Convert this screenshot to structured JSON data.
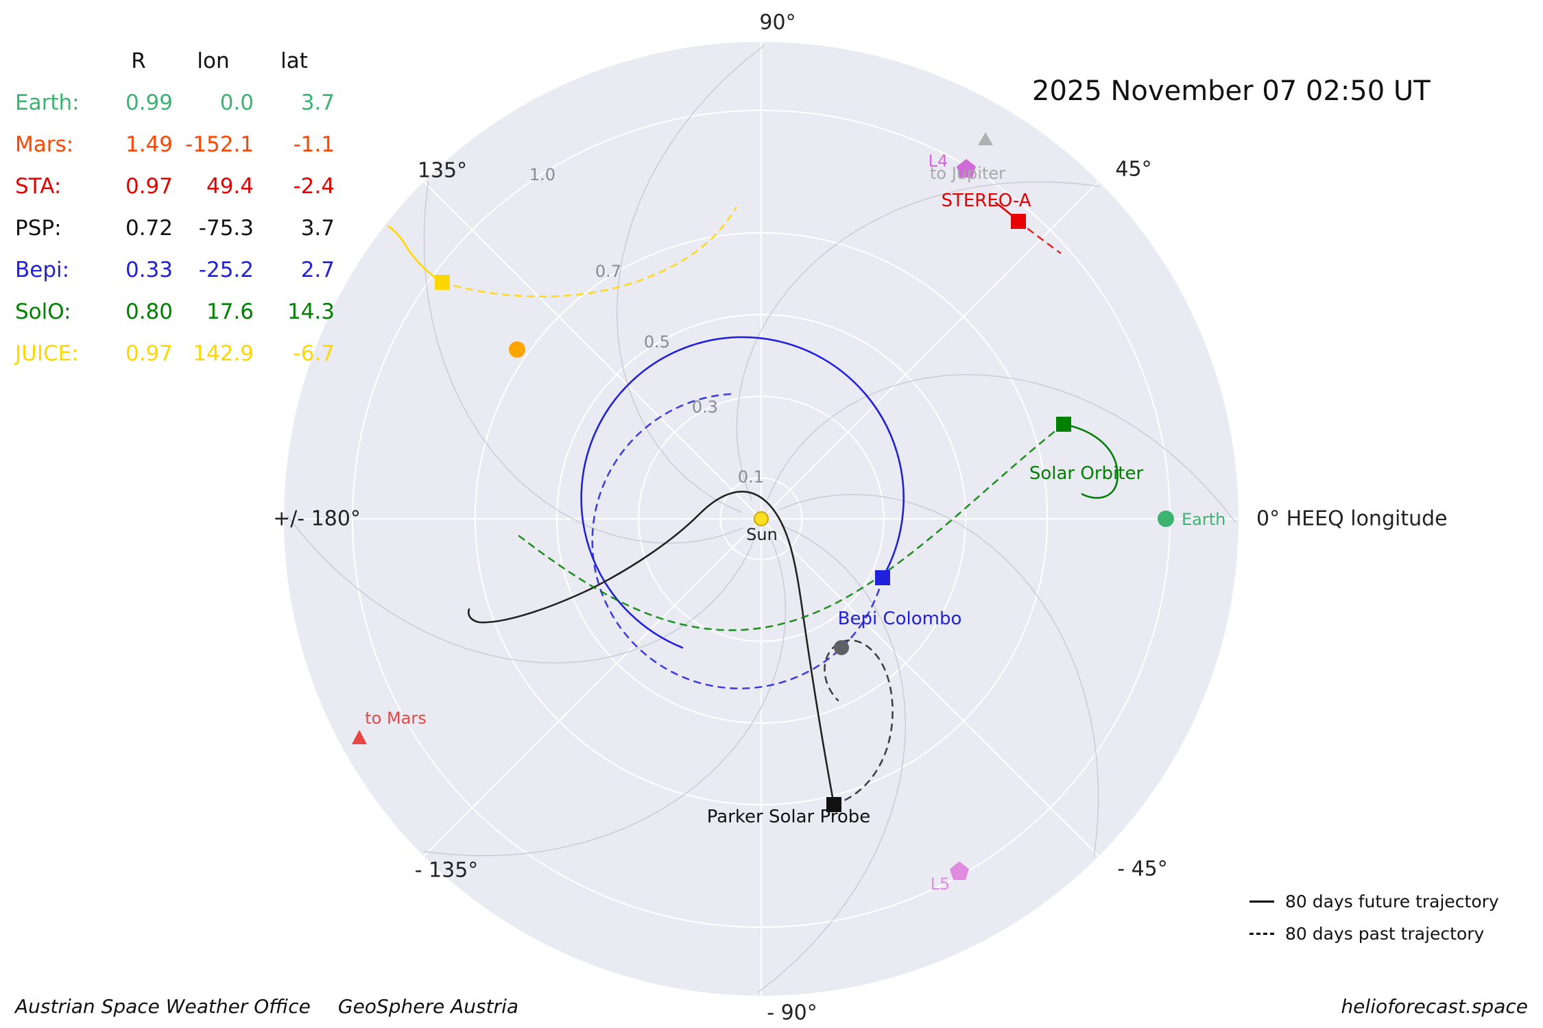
{
  "header": {
    "datetime": "2025 November 07  02:50 UT"
  },
  "table": {
    "headers": [
      "R",
      "lon",
      "lat"
    ],
    "rows": [
      {
        "label": "Earth:",
        "R": "0.99",
        "lon": "0.0",
        "lat": "3.7",
        "color": "#3cb371"
      },
      {
        "label": "Mars:",
        "R": "1.49",
        "lon": "-152.1",
        "lat": "-1.1",
        "color": "#ff4500"
      },
      {
        "label": "STA:",
        "R": "0.97",
        "lon": "49.4",
        "lat": "-2.4",
        "color": "#e60000"
      },
      {
        "label": "PSP:",
        "R": "0.72",
        "lon": "-75.3",
        "lat": "3.7",
        "color": "#000000"
      },
      {
        "label": "Bepi:",
        "R": "0.33",
        "lon": "-25.2",
        "lat": "2.7",
        "color": "#2020dd"
      },
      {
        "label": "SolO:",
        "R": "0.80",
        "lon": "17.6",
        "lat": "14.3",
        "color": "#008000"
      },
      {
        "label": "JUICE:",
        "R": "0.97",
        "lon": "142.9",
        "lat": "-6.7",
        "color": "#ffd700"
      }
    ]
  },
  "axis": {
    "angle_labels": {
      "top": "90°",
      "upper_right": "45°",
      "right": "0° HEEQ longitude",
      "lower_right": "- 45°",
      "bottom": "- 90°",
      "lower_left": "- 135°",
      "left": "+/- 180°",
      "upper_left": "135°"
    },
    "ring_labels": [
      "0.1",
      "0.3",
      "0.5",
      "0.7",
      "1.0"
    ]
  },
  "plot_labels": {
    "sun": "Sun",
    "earth": "Earth",
    "stereo_a": "STEREO-A",
    "solar_orbiter": "Solar Orbiter",
    "bepi": "Bepi Colombo",
    "psp": "Parker Solar Probe",
    "l4": "L4",
    "l5": "L5",
    "to_jupiter": "to Jupiter",
    "to_mars": "to Mars"
  },
  "legend": {
    "future": "80 days future trajectory",
    "past": "80 days past trajectory"
  },
  "footer": {
    "left1": "Austrian Space Weather Office",
    "left2": "GeoSphere Austria",
    "right": "helioforecast.space"
  },
  "colors": {
    "plot_background": "#eaeaf2",
    "grid": "#ffffff",
    "parker_spirals": "#c9c9d4",
    "earth": "#3cb371",
    "mars": "#ff4500",
    "stereo_a": "#e60000",
    "psp": "#000000",
    "bepi": "#2020dd",
    "solo": "#008000",
    "juice": "#ffd700",
    "venus_dot": "#ffa500",
    "mercury_dot": "#5f5f66",
    "l4": "#cf6ad8",
    "l5": "#e08ae0",
    "to_jupiter": "#a8a8a8",
    "to_mars": "#e84545",
    "sun": "#ffdf22"
  },
  "chart_data": {
    "type": "scatter",
    "subtype": "polar_positions_with_trajectories",
    "title": "2025 November 07  02:50 UT",
    "coordinate_system": "HEEQ longitude (deg), radial distance in AU",
    "angular_ticks_deg": [
      90,
      45,
      0,
      -45,
      -90,
      -135,
      180,
      135
    ],
    "radial_ticks_au": [
      0.1,
      0.3,
      0.5,
      0.7,
      1.0
    ],
    "xlabel": "0° HEEQ longitude",
    "bodies": [
      {
        "name": "Earth",
        "R_au": 0.99,
        "lon_deg": 0.0,
        "lat_deg": 3.7,
        "marker": "circle",
        "color": "#3cb371"
      },
      {
        "name": "Mars",
        "R_au": 1.49,
        "lon_deg": -152.1,
        "lat_deg": -1.1,
        "marker": "triangle-direction-indicator",
        "color": "#ff4500"
      },
      {
        "name": "STEREO-A (STA)",
        "R_au": 0.97,
        "lon_deg": 49.4,
        "lat_deg": -2.4,
        "marker": "square",
        "color": "#e60000"
      },
      {
        "name": "Parker Solar Probe (PSP)",
        "R_au": 0.72,
        "lon_deg": -75.3,
        "lat_deg": 3.7,
        "marker": "square",
        "color": "#000000"
      },
      {
        "name": "Bepi Colombo (Bepi)",
        "R_au": 0.33,
        "lon_deg": -25.2,
        "lat_deg": 2.7,
        "marker": "square",
        "color": "#2020dd"
      },
      {
        "name": "Solar Orbiter (SolO)",
        "R_au": 0.8,
        "lon_deg": 17.6,
        "lat_deg": 14.3,
        "marker": "square",
        "color": "#008000"
      },
      {
        "name": "JUICE",
        "R_au": 0.97,
        "lon_deg": 142.9,
        "lat_deg": -6.7,
        "marker": "square",
        "color": "#ffd700"
      }
    ],
    "reference_markers": [
      {
        "name": "Sun",
        "marker": "circle",
        "color": "#ffdf22"
      },
      {
        "name": "L4",
        "marker": "pentagon",
        "color": "#cf6ad8"
      },
      {
        "name": "L5",
        "marker": "pentagon",
        "color": "#e08ae0"
      },
      {
        "name": "to Jupiter",
        "marker": "triangle",
        "color": "#a8a8a8"
      },
      {
        "name": "to Mars",
        "marker": "triangle",
        "color": "#e84545"
      },
      {
        "name": "unlabeled orange planet dot",
        "marker": "circle",
        "color": "#ffa500"
      },
      {
        "name": "unlabeled gray planet dot",
        "marker": "circle",
        "color": "#5f5f66"
      }
    ],
    "line_styles": {
      "solid": "80 days future trajectory",
      "dashed": "80 days past trajectory"
    },
    "grid": "white polar grid (rings 0.1/0.3/0.5/0.7/1.0 AU, 45° radials) plus gray Parker-spiral guide lines",
    "legend_position": "bottom-right"
  }
}
